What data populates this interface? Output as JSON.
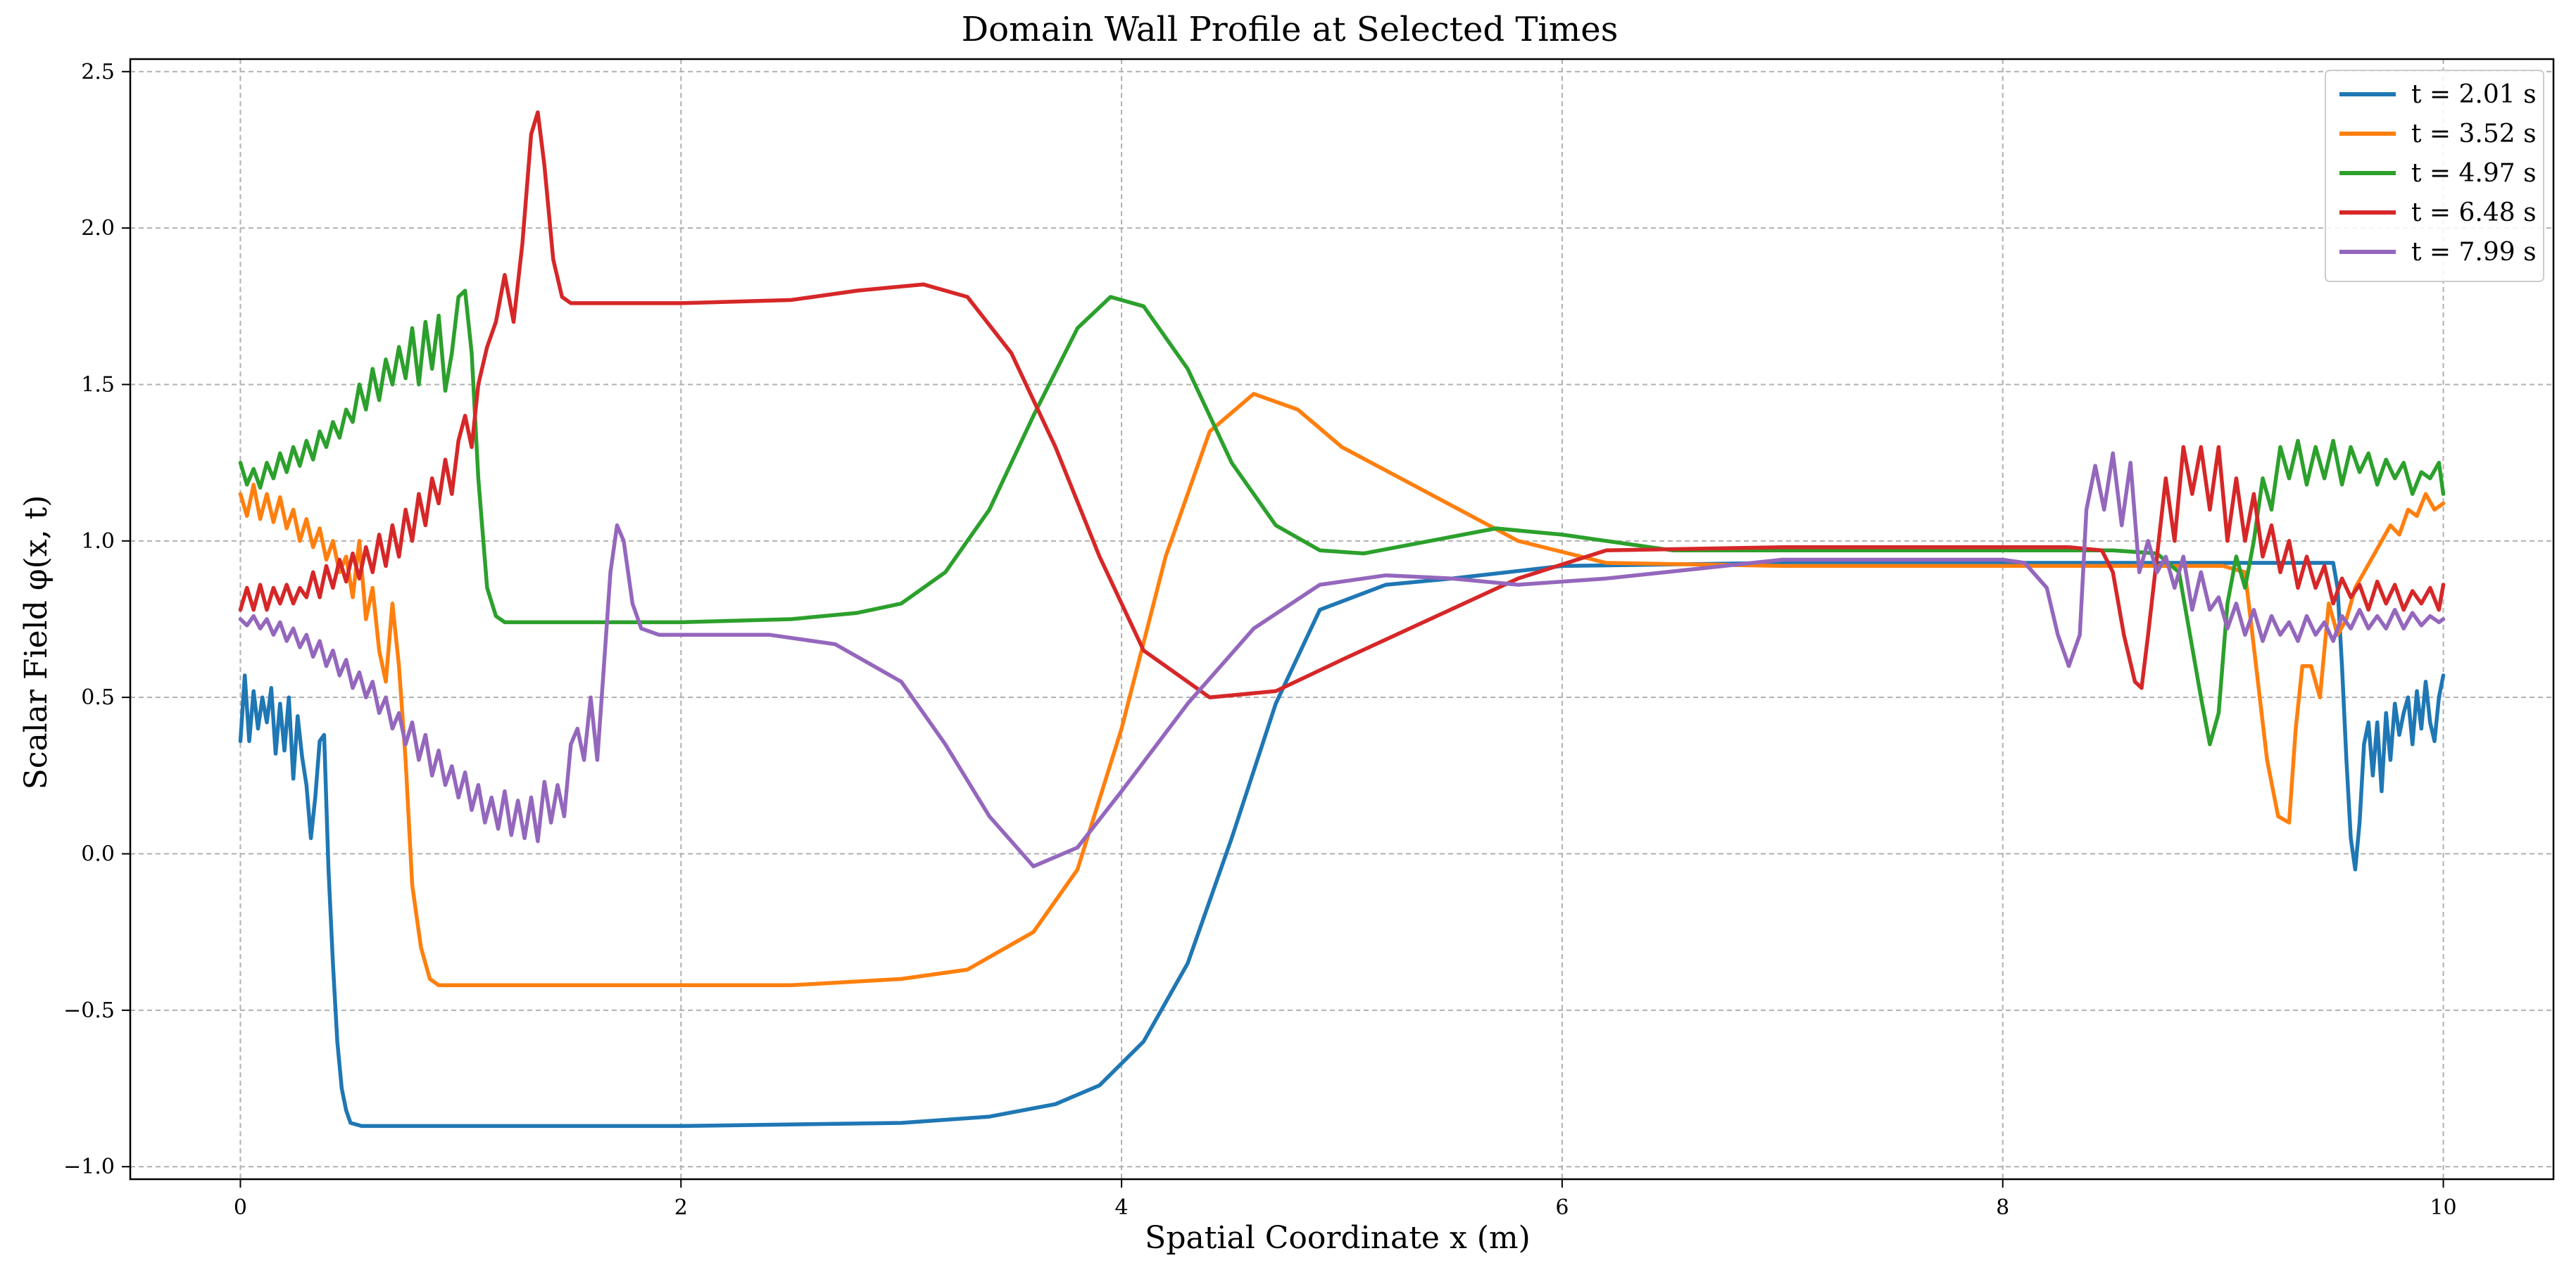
{
  "chart_data": {
    "type": "line",
    "title": "Domain Wall Profile at Selected Times",
    "xlabel": "Spatial Coordinate x (m)",
    "ylabel": "Scalar Field φ(x, t)",
    "xlim": [
      -0.5,
      10.5
    ],
    "ylim": [
      -1.04,
      2.54
    ],
    "xticks": [
      "0",
      "2",
      "4",
      "6",
      "8",
      "10"
    ],
    "yticks": [
      "−1.0",
      "−0.5",
      "0.0",
      "0.5",
      "1.0",
      "1.5",
      "2.0",
      "2.5"
    ],
    "grid": true,
    "legend_position": "top-right",
    "series": [
      {
        "name": "t = 2.01 s",
        "color": "#1f77b4",
        "x": [
          0,
          0.02,
          0.04,
          0.06,
          0.08,
          0.1,
          0.12,
          0.14,
          0.16,
          0.18,
          0.2,
          0.22,
          0.24,
          0.26,
          0.28,
          0.3,
          0.32,
          0.34,
          0.36,
          0.38,
          0.4,
          0.42,
          0.44,
          0.46,
          0.48,
          0.5,
          0.55,
          0.6,
          0.8,
          1,
          2,
          3,
          3.4,
          3.7,
          3.9,
          4.1,
          4.3,
          4.5,
          4.7,
          4.9,
          5.2,
          5.5,
          6,
          7,
          8,
          8.5,
          9,
          9.5,
          9.52,
          9.54,
          9.56,
          9.58,
          9.6,
          9.62,
          9.64,
          9.66,
          9.68,
          9.7,
          9.72,
          9.74,
          9.76,
          9.78,
          9.8,
          9.82,
          9.84,
          9.86,
          9.88,
          9.9,
          9.92,
          9.94,
          9.96,
          9.98,
          10
        ],
        "y": [
          0.36,
          0.57,
          0.36,
          0.52,
          0.4,
          0.5,
          0.42,
          0.53,
          0.32,
          0.48,
          0.33,
          0.5,
          0.24,
          0.44,
          0.31,
          0.22,
          0.05,
          0.18,
          0.36,
          0.38,
          -0.05,
          -0.35,
          -0.6,
          -0.75,
          -0.82,
          -0.86,
          -0.87,
          -0.87,
          -0.87,
          -0.87,
          -0.87,
          -0.86,
          -0.84,
          -0.8,
          -0.74,
          -0.6,
          -0.35,
          0.05,
          0.48,
          0.78,
          0.86,
          0.88,
          0.92,
          0.93,
          0.93,
          0.93,
          0.93,
          0.93,
          0.85,
          0.6,
          0.3,
          0.05,
          -0.05,
          0.1,
          0.35,
          0.42,
          0.25,
          0.42,
          0.2,
          0.45,
          0.3,
          0.48,
          0.38,
          0.45,
          0.5,
          0.35,
          0.52,
          0.4,
          0.55,
          0.42,
          0.36,
          0.5,
          0.57
        ]
      },
      {
        "name": "t = 3.52 s",
        "color": "#ff7f0e",
        "x": [
          0,
          0.03,
          0.06,
          0.09,
          0.12,
          0.15,
          0.18,
          0.21,
          0.24,
          0.27,
          0.3,
          0.33,
          0.36,
          0.39,
          0.42,
          0.45,
          0.48,
          0.51,
          0.54,
          0.57,
          0.6,
          0.63,
          0.66,
          0.69,
          0.72,
          0.75,
          0.78,
          0.82,
          0.86,
          0.9,
          1,
          1.5,
          2,
          2.5,
          3,
          3.3,
          3.6,
          3.8,
          4,
          4.2,
          4.4,
          4.6,
          4.8,
          5,
          5.4,
          5.8,
          6.2,
          7,
          8,
          8.5,
          8.8,
          9,
          9.1,
          9.15,
          9.2,
          9.25,
          9.3,
          9.33,
          9.36,
          9.4,
          9.44,
          9.48,
          9.52,
          9.56,
          9.6,
          9.64,
          9.68,
          9.72,
          9.76,
          9.8,
          9.84,
          9.88,
          9.92,
          9.96,
          10
        ],
        "y": [
          1.15,
          1.08,
          1.18,
          1.07,
          1.15,
          1.06,
          1.14,
          1.04,
          1.1,
          1.0,
          1.07,
          0.98,
          1.04,
          0.94,
          1.0,
          0.9,
          0.95,
          0.82,
          1.0,
          0.75,
          0.85,
          0.65,
          0.55,
          0.8,
          0.6,
          0.3,
          -0.1,
          -0.3,
          -0.4,
          -0.42,
          -0.42,
          -0.42,
          -0.42,
          -0.42,
          -0.4,
          -0.37,
          -0.25,
          -0.05,
          0.4,
          0.95,
          1.35,
          1.47,
          1.42,
          1.3,
          1.15,
          1.0,
          0.93,
          0.92,
          0.92,
          0.92,
          0.92,
          0.92,
          0.9,
          0.6,
          0.3,
          0.12,
          0.1,
          0.4,
          0.6,
          0.6,
          0.5,
          0.8,
          0.7,
          0.75,
          0.85,
          0.9,
          0.95,
          1.0,
          1.05,
          1.02,
          1.1,
          1.08,
          1.15,
          1.1,
          1.12
        ]
      },
      {
        "name": "t = 4.97 s",
        "color": "#2ca02c",
        "x": [
          0,
          0.03,
          0.06,
          0.09,
          0.12,
          0.15,
          0.18,
          0.21,
          0.24,
          0.27,
          0.3,
          0.33,
          0.36,
          0.39,
          0.42,
          0.45,
          0.48,
          0.51,
          0.54,
          0.57,
          0.6,
          0.63,
          0.66,
          0.69,
          0.72,
          0.75,
          0.78,
          0.81,
          0.84,
          0.87,
          0.9,
          0.93,
          0.96,
          0.99,
          1.02,
          1.05,
          1.08,
          1.12,
          1.16,
          1.2,
          1.3,
          1.5,
          2,
          2.5,
          2.8,
          3,
          3.2,
          3.4,
          3.6,
          3.8,
          3.95,
          4.1,
          4.3,
          4.5,
          4.7,
          4.9,
          5.1,
          5.4,
          5.7,
          6,
          6.5,
          7,
          8,
          8.5,
          8.7,
          8.8,
          8.85,
          8.9,
          8.94,
          8.98,
          9.02,
          9.06,
          9.1,
          9.14,
          9.18,
          9.22,
          9.26,
          9.3,
          9.34,
          9.38,
          9.42,
          9.46,
          9.5,
          9.54,
          9.58,
          9.62,
          9.66,
          9.7,
          9.74,
          9.78,
          9.82,
          9.86,
          9.9,
          9.94,
          9.98,
          10
        ],
        "y": [
          1.25,
          1.18,
          1.23,
          1.17,
          1.25,
          1.2,
          1.28,
          1.22,
          1.3,
          1.24,
          1.32,
          1.26,
          1.35,
          1.3,
          1.38,
          1.33,
          1.42,
          1.38,
          1.5,
          1.42,
          1.55,
          1.45,
          1.58,
          1.5,
          1.62,
          1.52,
          1.68,
          1.5,
          1.7,
          1.55,
          1.72,
          1.48,
          1.6,
          1.78,
          1.8,
          1.6,
          1.2,
          0.85,
          0.76,
          0.74,
          0.74,
          0.74,
          0.74,
          0.75,
          0.77,
          0.8,
          0.9,
          1.1,
          1.4,
          1.68,
          1.78,
          1.75,
          1.55,
          1.25,
          1.05,
          0.97,
          0.96,
          1.0,
          1.04,
          1.02,
          0.97,
          0.97,
          0.97,
          0.97,
          0.96,
          0.9,
          0.7,
          0.5,
          0.35,
          0.45,
          0.8,
          0.95,
          0.85,
          1.0,
          1.2,
          1.1,
          1.3,
          1.2,
          1.32,
          1.18,
          1.3,
          1.2,
          1.32,
          1.18,
          1.3,
          1.22,
          1.28,
          1.18,
          1.26,
          1.2,
          1.25,
          1.15,
          1.22,
          1.2,
          1.25,
          1.15
        ]
      },
      {
        "name": "t = 6.48 s",
        "color": "#d62728",
        "x": [
          0,
          0.03,
          0.06,
          0.09,
          0.12,
          0.15,
          0.18,
          0.21,
          0.24,
          0.27,
          0.3,
          0.33,
          0.36,
          0.39,
          0.42,
          0.45,
          0.48,
          0.51,
          0.54,
          0.57,
          0.6,
          0.63,
          0.66,
          0.69,
          0.72,
          0.75,
          0.78,
          0.81,
          0.84,
          0.87,
          0.9,
          0.93,
          0.96,
          0.99,
          1.02,
          1.05,
          1.08,
          1.12,
          1.16,
          1.2,
          1.24,
          1.28,
          1.32,
          1.35,
          1.38,
          1.42,
          1.46,
          1.5,
          1.55,
          1.6,
          1.8,
          2,
          2.5,
          2.8,
          3.1,
          3.3,
          3.5,
          3.7,
          3.9,
          4.1,
          4.4,
          4.7,
          5,
          5.4,
          5.8,
          6.2,
          7,
          8,
          8.3,
          8.45,
          8.5,
          8.55,
          8.6,
          8.63,
          8.66,
          8.7,
          8.74,
          8.78,
          8.82,
          8.86,
          8.9,
          8.94,
          8.98,
          9.02,
          9.06,
          9.1,
          9.14,
          9.18,
          9.22,
          9.26,
          9.3,
          9.34,
          9.38,
          9.42,
          9.46,
          9.5,
          9.54,
          9.58,
          9.62,
          9.66,
          9.7,
          9.74,
          9.78,
          9.82,
          9.86,
          9.9,
          9.94,
          9.98,
          10
        ],
        "y": [
          0.78,
          0.85,
          0.78,
          0.86,
          0.78,
          0.85,
          0.8,
          0.86,
          0.8,
          0.85,
          0.82,
          0.9,
          0.82,
          0.92,
          0.85,
          0.94,
          0.87,
          0.96,
          0.88,
          0.98,
          0.9,
          1.02,
          0.92,
          1.05,
          0.95,
          1.1,
          1.0,
          1.15,
          1.05,
          1.2,
          1.12,
          1.26,
          1.15,
          1.32,
          1.4,
          1.3,
          1.5,
          1.62,
          1.7,
          1.85,
          1.7,
          1.95,
          2.3,
          2.37,
          2.2,
          1.9,
          1.78,
          1.76,
          1.76,
          1.76,
          1.76,
          1.76,
          1.77,
          1.8,
          1.82,
          1.78,
          1.6,
          1.3,
          0.95,
          0.65,
          0.5,
          0.52,
          0.62,
          0.75,
          0.88,
          0.97,
          0.98,
          0.98,
          0.98,
          0.97,
          0.9,
          0.7,
          0.55,
          0.53,
          0.7,
          0.95,
          1.2,
          1.0,
          1.3,
          1.15,
          1.3,
          1.1,
          1.3,
          1.0,
          1.2,
          1.0,
          1.15,
          0.95,
          1.05,
          0.9,
          1.0,
          0.85,
          0.95,
          0.85,
          0.92,
          0.8,
          0.88,
          0.82,
          0.86,
          0.78,
          0.87,
          0.8,
          0.86,
          0.78,
          0.84,
          0.8,
          0.85,
          0.78,
          0.86
        ]
      },
      {
        "name": "t = 7.99 s",
        "color": "#9467bd",
        "x": [
          0,
          0.03,
          0.06,
          0.09,
          0.12,
          0.15,
          0.18,
          0.21,
          0.24,
          0.27,
          0.3,
          0.33,
          0.36,
          0.39,
          0.42,
          0.45,
          0.48,
          0.51,
          0.54,
          0.57,
          0.6,
          0.63,
          0.66,
          0.69,
          0.72,
          0.75,
          0.78,
          0.81,
          0.84,
          0.87,
          0.9,
          0.93,
          0.96,
          0.99,
          1.02,
          1.05,
          1.08,
          1.11,
          1.14,
          1.17,
          1.2,
          1.23,
          1.26,
          1.29,
          1.32,
          1.35,
          1.38,
          1.41,
          1.44,
          1.47,
          1.5,
          1.53,
          1.56,
          1.59,
          1.62,
          1.65,
          1.68,
          1.71,
          1.74,
          1.78,
          1.82,
          1.9,
          2,
          2.4,
          2.7,
          3,
          3.2,
          3.4,
          3.6,
          3.8,
          4,
          4.3,
          4.6,
          4.9,
          5.2,
          5.5,
          5.8,
          6.2,
          7,
          8,
          8.1,
          8.2,
          8.25,
          8.3,
          8.35,
          8.38,
          8.42,
          8.46,
          8.5,
          8.54,
          8.58,
          8.62,
          8.66,
          8.7,
          8.74,
          8.78,
          8.82,
          8.86,
          8.9,
          8.94,
          8.98,
          9.02,
          9.06,
          9.1,
          9.14,
          9.18,
          9.22,
          9.26,
          9.3,
          9.34,
          9.38,
          9.42,
          9.46,
          9.5,
          9.54,
          9.58,
          9.62,
          9.66,
          9.7,
          9.74,
          9.78,
          9.82,
          9.86,
          9.9,
          9.94,
          9.98,
          10
        ],
        "y": [
          0.75,
          0.73,
          0.76,
          0.72,
          0.75,
          0.7,
          0.74,
          0.68,
          0.72,
          0.66,
          0.7,
          0.63,
          0.68,
          0.6,
          0.65,
          0.57,
          0.62,
          0.53,
          0.58,
          0.5,
          0.55,
          0.45,
          0.5,
          0.4,
          0.45,
          0.35,
          0.42,
          0.3,
          0.38,
          0.25,
          0.33,
          0.22,
          0.28,
          0.18,
          0.26,
          0.14,
          0.22,
          0.1,
          0.18,
          0.08,
          0.2,
          0.06,
          0.17,
          0.05,
          0.18,
          0.04,
          0.23,
          0.1,
          0.22,
          0.12,
          0.35,
          0.4,
          0.3,
          0.5,
          0.3,
          0.6,
          0.9,
          1.05,
          1.0,
          0.8,
          0.72,
          0.7,
          0.7,
          0.7,
          0.67,
          0.55,
          0.35,
          0.12,
          -0.04,
          0.02,
          0.2,
          0.48,
          0.72,
          0.86,
          0.89,
          0.88,
          0.86,
          0.88,
          0.94,
          0.94,
          0.93,
          0.85,
          0.7,
          0.6,
          0.7,
          1.1,
          1.24,
          1.1,
          1.28,
          1.05,
          1.25,
          0.9,
          1.0,
          0.9,
          0.95,
          0.85,
          0.95,
          0.78,
          0.9,
          0.78,
          0.82,
          0.72,
          0.8,
          0.7,
          0.78,
          0.68,
          0.76,
          0.7,
          0.74,
          0.68,
          0.76,
          0.7,
          0.74,
          0.68,
          0.76,
          0.72,
          0.78,
          0.72,
          0.76,
          0.72,
          0.78,
          0.72,
          0.77,
          0.73,
          0.76,
          0.74,
          0.75
        ]
      }
    ]
  }
}
